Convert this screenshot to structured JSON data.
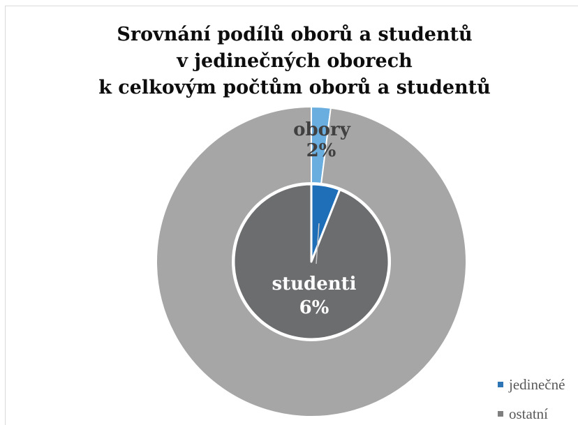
{
  "chart_data": {
    "type": "pie",
    "title": [
      "Srovnání podílů oborů a studentů",
      "v jedinečných oborech",
      "k celkovým počtům oborů a studentů"
    ],
    "categories": [
      "jedinečné",
      "ostatní"
    ],
    "series": [
      {
        "name": "obory",
        "ring": "outer",
        "values": [
          2,
          98
        ],
        "data_label": "2%",
        "colors": [
          "#6aaee0",
          "#a6a6a6"
        ]
      },
      {
        "name": "studenti",
        "ring": "inner",
        "values": [
          6,
          94
        ],
        "data_label": "6%",
        "colors": [
          "#1f6fb8",
          "#6c6d6f"
        ]
      }
    ],
    "label_colors": {
      "obory": "#404040",
      "studenti": "#ffffff"
    },
    "legend": {
      "position": "bottom-right",
      "entries": [
        {
          "label": "jedinečné",
          "color": "#2e75b6"
        },
        {
          "label": "ostatní",
          "color": "#7f7f7f"
        }
      ]
    }
  }
}
